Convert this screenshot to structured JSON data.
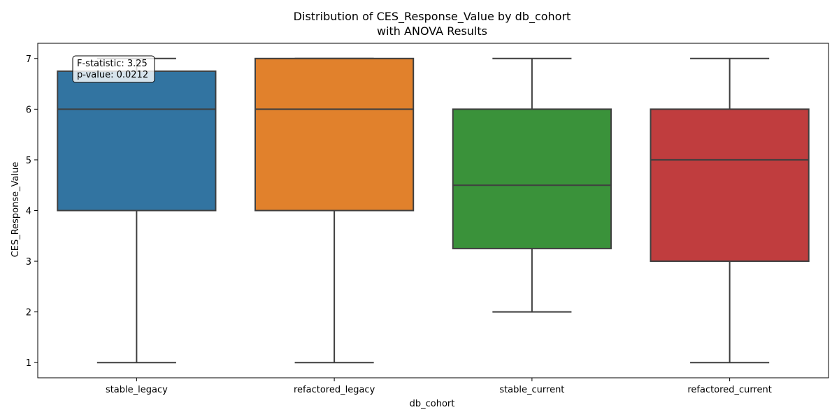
{
  "chart_data": {
    "type": "box",
    "title_line1": "Distribution of CES_Response_Value by db_cohort",
    "title_line2": "with ANOVA Results",
    "xlabel": "db_cohort",
    "ylabel": "CES_Response_Value",
    "ylim": [
      0.7,
      7.3
    ],
    "yticks": [
      1,
      2,
      3,
      4,
      5,
      6,
      7
    ],
    "categories": [
      "stable_legacy",
      "refactored_legacy",
      "stable_current",
      "refactored_current"
    ],
    "colors": [
      "#3274a1",
      "#e1812c",
      "#3a923a",
      "#c03d3e"
    ],
    "boxes": [
      {
        "whisker_low": 1,
        "q1": 4,
        "median": 6,
        "q3": 6.75,
        "whisker_high": 7
      },
      {
        "whisker_low": 1,
        "q1": 4,
        "median": 6,
        "q3": 7,
        "whisker_high": 7
      },
      {
        "whisker_low": 2,
        "q1": 3.25,
        "median": 4.5,
        "q3": 6,
        "whisker_high": 7
      },
      {
        "whisker_low": 1,
        "q1": 3,
        "median": 5,
        "q3": 6,
        "whisker_high": 7
      }
    ],
    "annotation": {
      "line1": "F-statistic: 3.25",
      "line2": "p-value: 0.0212"
    },
    "grid": false
  }
}
